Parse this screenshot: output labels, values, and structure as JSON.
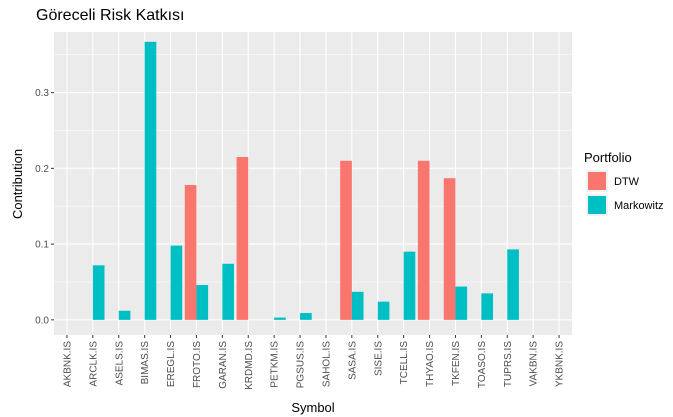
{
  "chart_data": {
    "type": "bar",
    "title": "Göreceli Risk Katkısı",
    "xlabel": "Symbol",
    "ylabel": "Contribution",
    "ylim": [
      -0.02,
      0.38
    ],
    "yticks": [
      0.0,
      0.1,
      0.2,
      0.3
    ],
    "ytick_labels": [
      "0.0",
      "0.1",
      "0.2",
      "0.3"
    ],
    "grid": true,
    "legend": {
      "title": "Portfolio",
      "position": "right"
    },
    "categories": [
      "AKBNK.IS",
      "ARCLK.IS",
      "ASELS.IS",
      "BIMAS.IS",
      "EREGL.IS",
      "FROTO.IS",
      "GARAN.IS",
      "KRDMD.IS",
      "PETKM.IS",
      "PGSUS.IS",
      "SAHOL.IS",
      "SASA.IS",
      "SISE.IS",
      "TCELL.IS",
      "THYAO.IS",
      "TKFEN.IS",
      "TOASO.IS",
      "TUPRS.IS",
      "VAKBN.IS",
      "YKBNK.IS"
    ],
    "series": [
      {
        "name": "DTW",
        "color": "#F8766D",
        "values": [
          0,
          0,
          0,
          0,
          0,
          0.178,
          0,
          0.215,
          0,
          0,
          0,
          0.21,
          0,
          0,
          0.21,
          0.187,
          0,
          0,
          0,
          0
        ]
      },
      {
        "name": "Markowitz",
        "color": "#00BFC4",
        "values": [
          0,
          0.072,
          0.012,
          0.367,
          0.098,
          0.046,
          0.074,
          0,
          0.003,
          0.009,
          0,
          0.037,
          0.024,
          0.09,
          0,
          0.044,
          0.035,
          0.093,
          0,
          0
        ]
      }
    ]
  }
}
